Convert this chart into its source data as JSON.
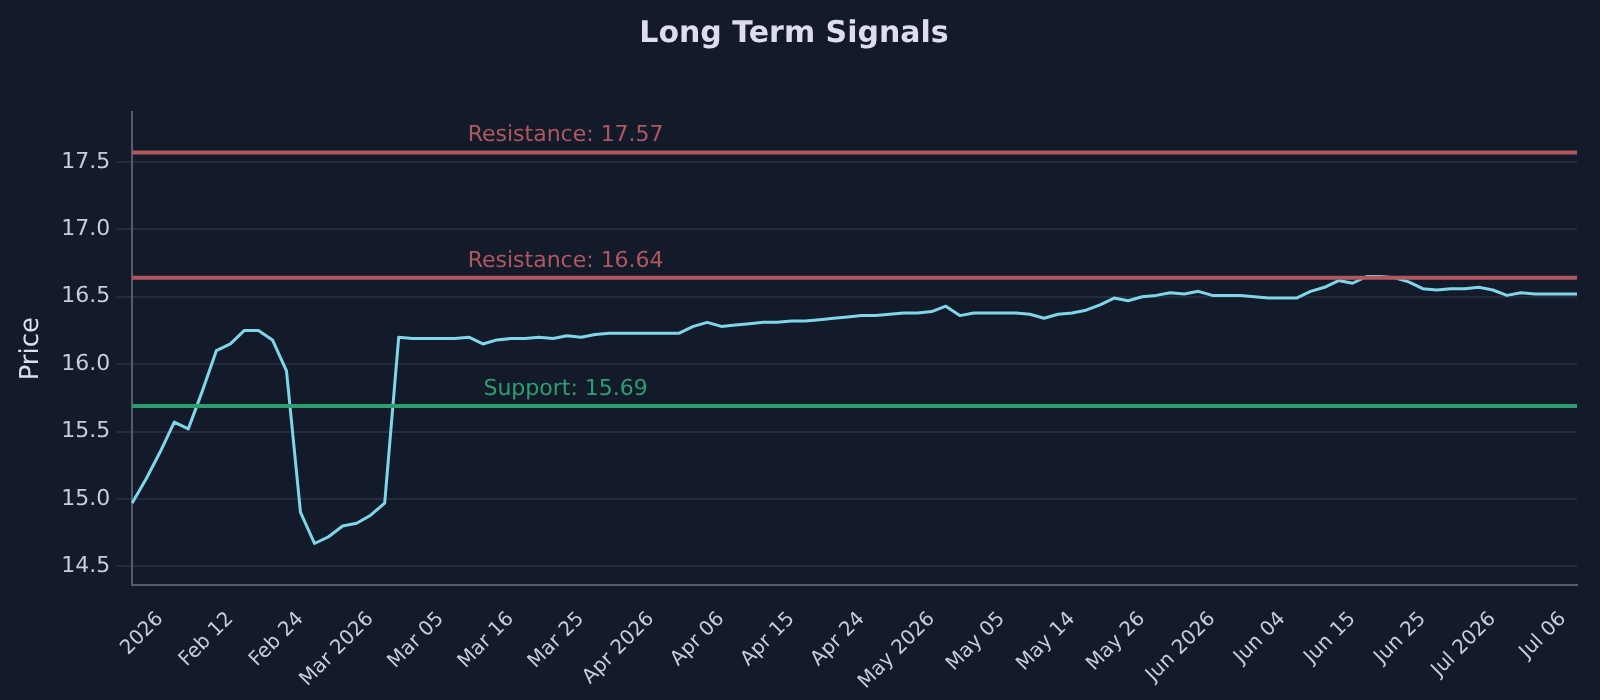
{
  "chart_data": {
    "type": "line",
    "title": "Long Term Signals",
    "ylabel": "Price",
    "categories": [
      null,
      null,
      "2026",
      null,
      null,
      null,
      null,
      "Feb 12",
      null,
      null,
      null,
      null,
      "Feb 24",
      null,
      null,
      null,
      null,
      "Mar 2026",
      null,
      null,
      null,
      null,
      "Mar 05",
      null,
      null,
      null,
      null,
      "Mar 16",
      null,
      null,
      null,
      null,
      "Mar 25",
      null,
      null,
      null,
      null,
      "Apr 2026",
      null,
      null,
      null,
      null,
      "Apr 06",
      null,
      null,
      null,
      null,
      "Apr 15",
      null,
      null,
      null,
      null,
      "Apr 24",
      null,
      null,
      null,
      null,
      "May 2026",
      null,
      null,
      null,
      null,
      "May 05",
      null,
      null,
      null,
      null,
      "May 14",
      null,
      null,
      null,
      null,
      "May 26",
      null,
      null,
      null,
      null,
      "Jun 2026",
      null,
      null,
      null,
      null,
      "Jun 04",
      null,
      null,
      null,
      null,
      "Jun 15",
      null,
      null,
      null,
      null,
      "Jun 25",
      null,
      null,
      null,
      null,
      "Jul 2026",
      null,
      null,
      null,
      null,
      "Jul 06",
      null
    ],
    "series": [
      {
        "color": "#7fd6e8",
        "values": [
          14.97,
          15.15,
          15.35,
          15.57,
          15.52,
          15.8,
          16.1,
          16.15,
          16.25,
          16.25,
          16.18,
          15.95,
          14.9,
          14.67,
          14.72,
          14.8,
          14.82,
          14.88,
          14.97,
          16.2,
          16.19,
          16.19,
          16.19,
          16.19,
          16.2,
          16.15,
          16.18,
          16.19,
          16.19,
          16.2,
          16.19,
          16.21,
          16.2,
          16.22,
          16.23,
          16.23,
          16.23,
          16.23,
          16.23,
          16.23,
          16.28,
          16.31,
          16.28,
          16.29,
          16.3,
          16.31,
          16.31,
          16.32,
          16.32,
          16.33,
          16.34,
          16.35,
          16.36,
          16.36,
          16.37,
          16.38,
          16.38,
          16.39,
          16.43,
          16.36,
          16.38,
          16.38,
          16.38,
          16.38,
          16.37,
          16.34,
          16.37,
          16.38,
          16.4,
          16.44,
          16.49,
          16.47,
          16.5,
          16.51,
          16.53,
          16.52,
          16.54,
          16.51,
          16.51,
          16.51,
          16.5,
          16.49,
          16.49,
          16.49,
          16.54,
          16.57,
          16.62,
          16.6,
          16.65,
          16.65,
          16.64,
          16.61,
          16.56,
          16.55,
          16.56,
          16.56,
          16.57,
          16.55,
          16.51,
          16.53,
          16.52,
          16.52,
          16.52,
          16.52
        ]
      }
    ],
    "ylim": [
      14.36,
      17.87
    ],
    "yticks": [
      14.5,
      {
        "value": 15,
        "label": "15.0"
      },
      15.5,
      {
        "value": 16,
        "label": "16.0"
      },
      16.5,
      {
        "value": 17,
        "label": "17.0"
      },
      17.5
    ],
    "grid": "y",
    "legend": false,
    "marker": "none",
    "line_style": "solid",
    "ref_lines": [
      {
        "axis": "y",
        "value": 17.57,
        "label": "Resistance: 17.57",
        "color": "#b0575f"
      },
      {
        "axis": "y",
        "value": 16.64,
        "label": "Resistance: 16.64",
        "color": "#b0575f"
      },
      {
        "axis": "y",
        "value": 15.69,
        "label": "Support: 15.69",
        "color": "#2e9e70"
      }
    ]
  }
}
